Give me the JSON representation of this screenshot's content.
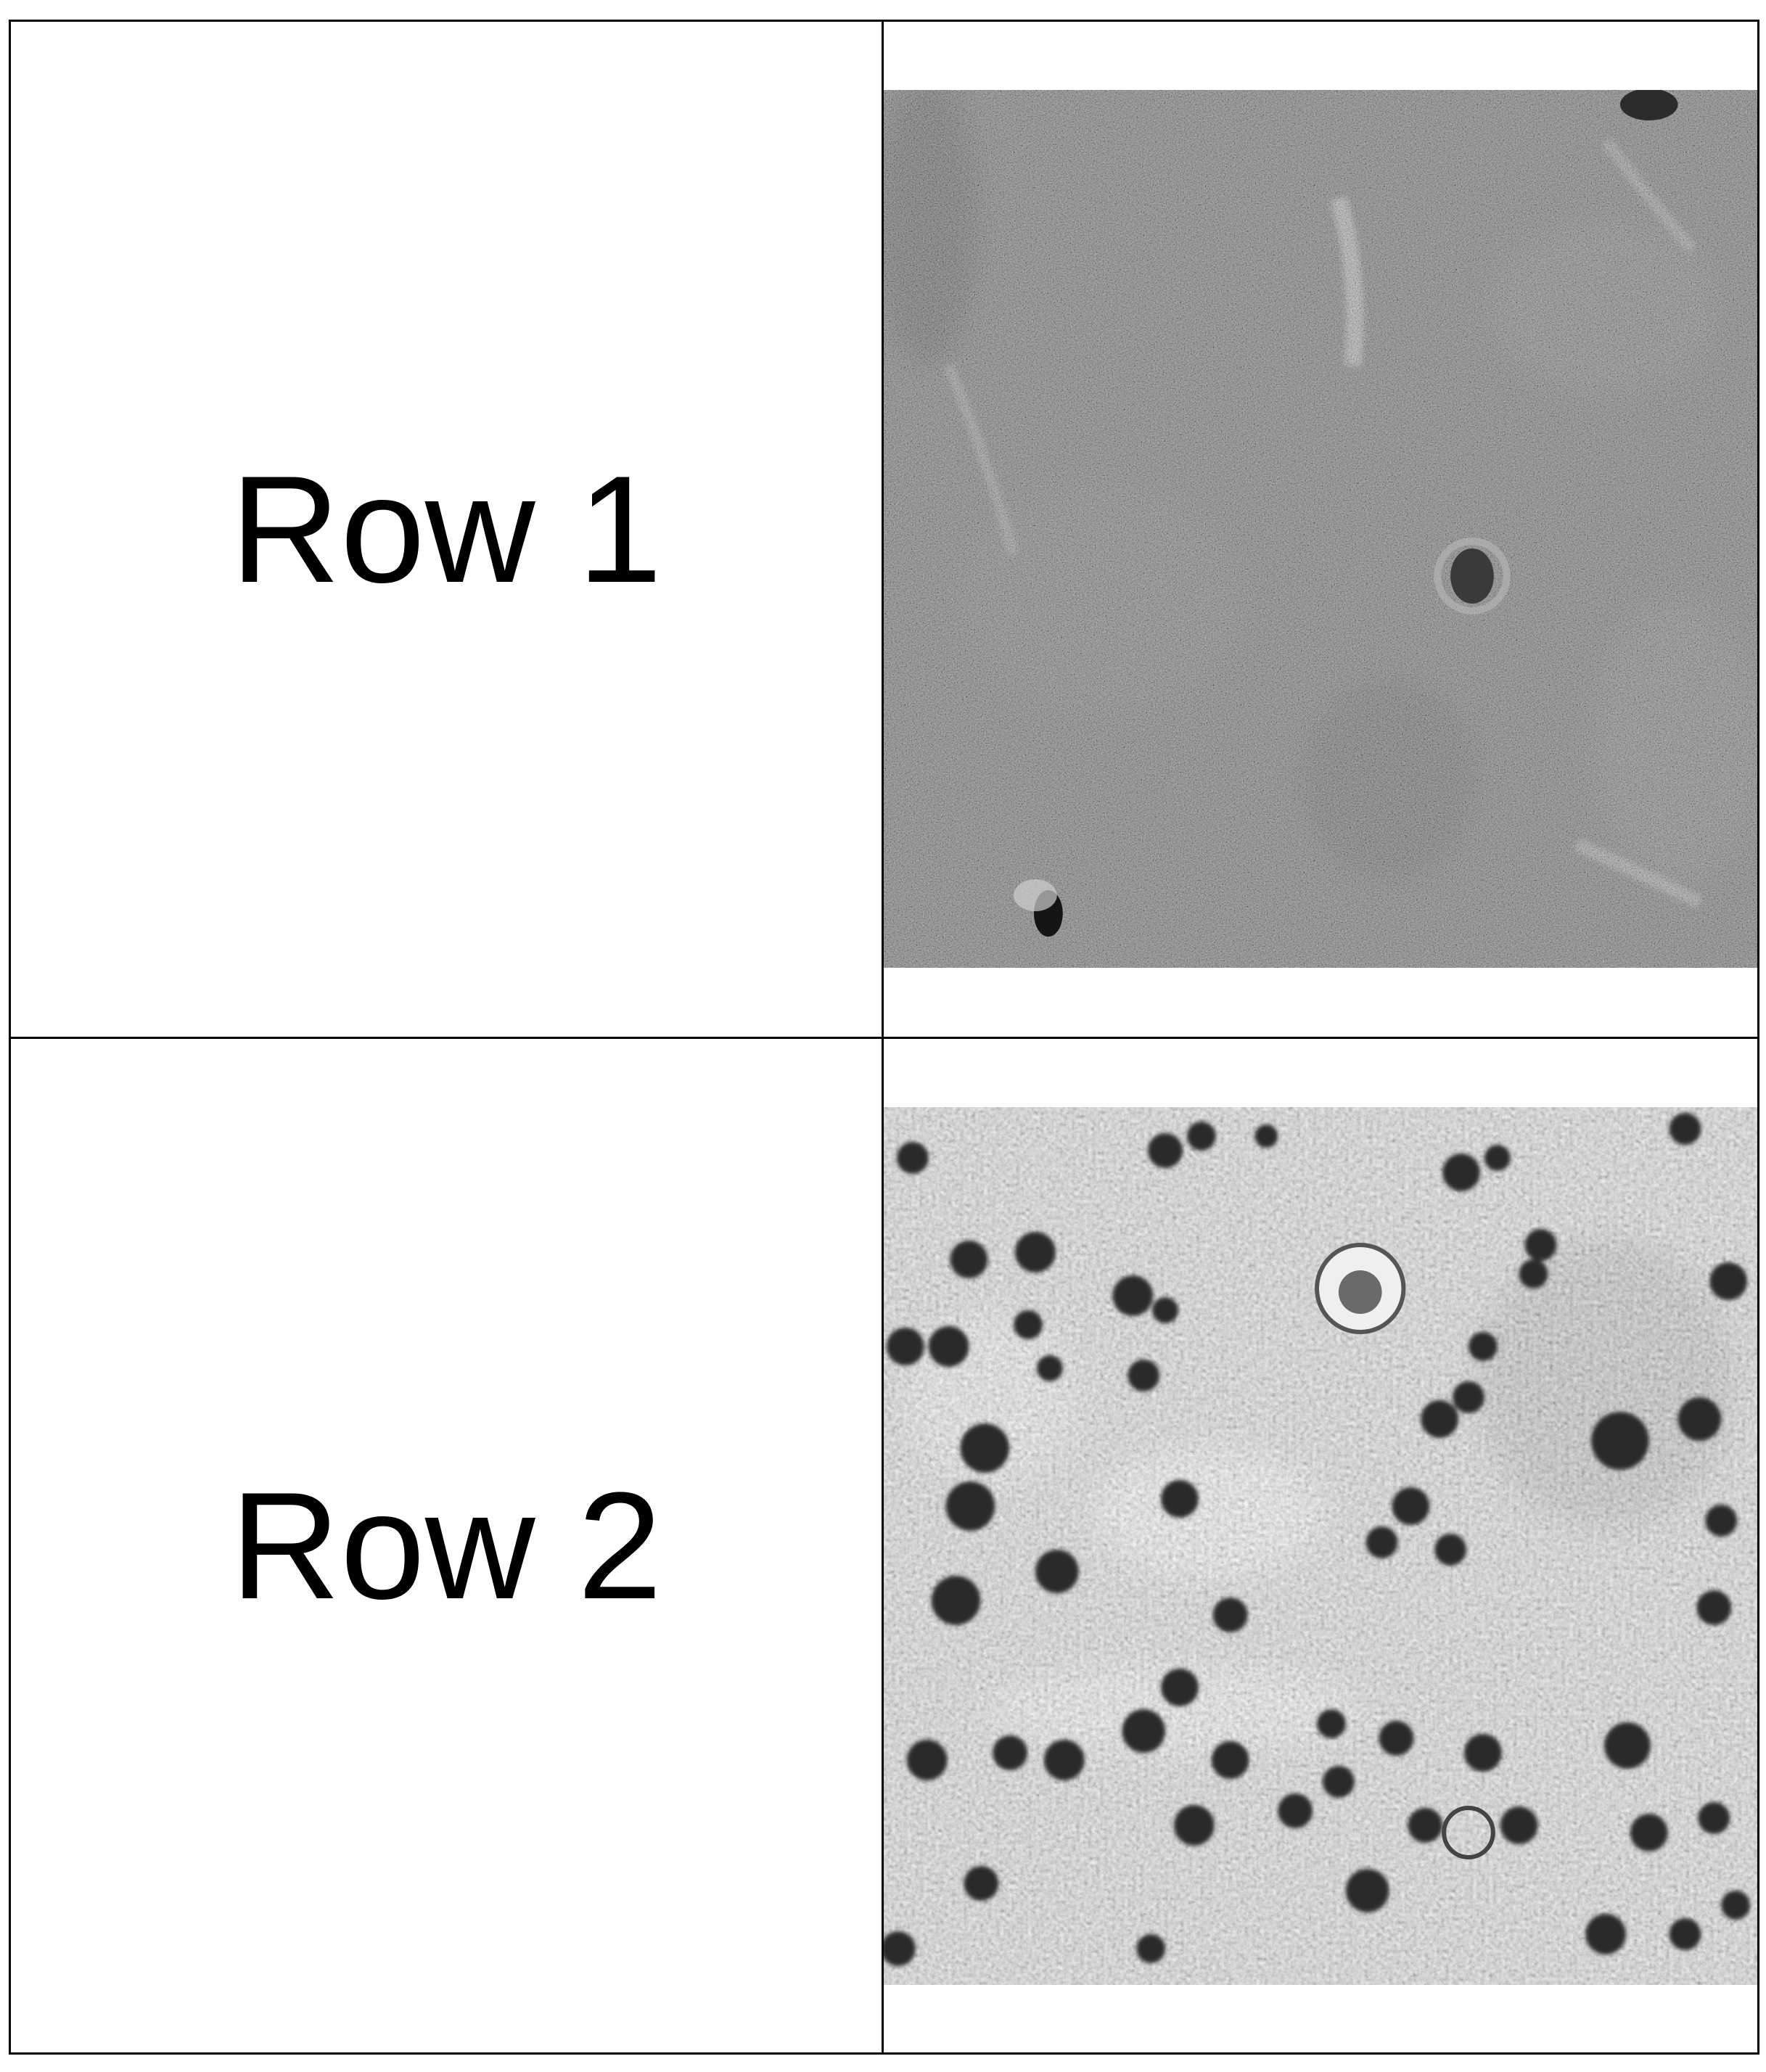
{
  "table": {
    "rows": [
      {
        "label": "Row 1",
        "image": "micrograph-fine-grained-tissue"
      },
      {
        "label": "Row 2",
        "image": "micrograph-stained-cell-nuclei"
      }
    ]
  }
}
